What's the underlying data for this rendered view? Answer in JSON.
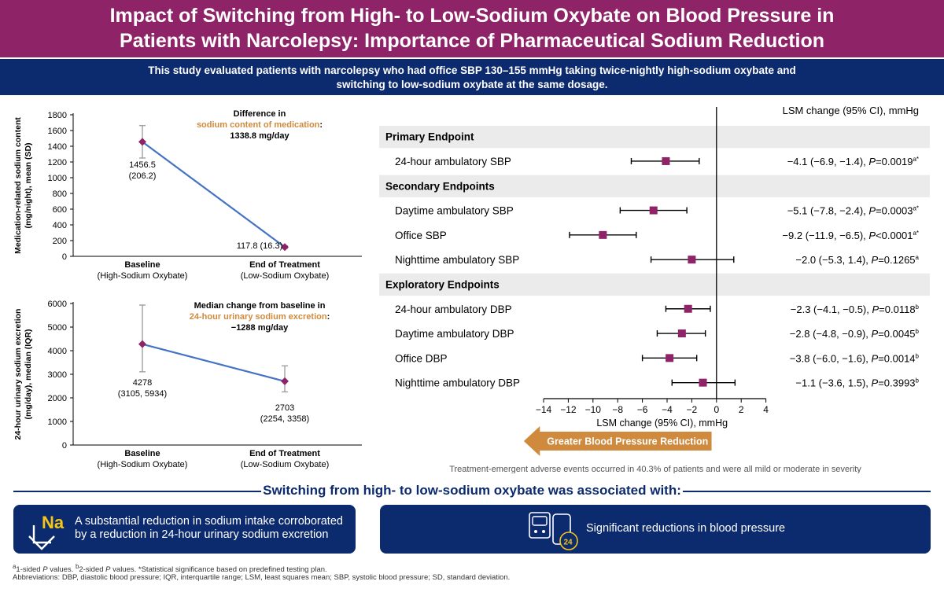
{
  "header": {
    "title_line1": "Impact of Switching from High- to Low-Sodium Oxybate on Blood Pressure in",
    "title_line2": "Patients with Narcolepsy: Importance of Pharmaceutical Sodium Reduction"
  },
  "intro": {
    "line1": "This study evaluated patients with narcolepsy who had office SBP 130–155 mmHg taking twice-nightly high-sodium oxybate and",
    "line2": "switching to low-sodium oxybate at the same dosage."
  },
  "colors": {
    "title_bar": "#8f2368",
    "navy": "#0c2a6e",
    "orange": "#cf8a3e",
    "marker": "#8f2368",
    "line": "#4472c4"
  },
  "chart_data": [
    {
      "type": "line",
      "ylabel_line1": "Medication-related sodium content",
      "ylabel_line2": "(mg/night), mean (SD)",
      "yticks": [
        "0",
        "200",
        "400",
        "600",
        "800",
        "1000",
        "1200",
        "1400",
        "1600",
        "1800"
      ],
      "ylim": [
        0,
        1800
      ],
      "categories": [
        {
          "label": "Baseline",
          "sublabel": "(High-Sodium Oxybate)"
        },
        {
          "label": "End of Treatment",
          "sublabel": "(Low-Sodium Oxybate)"
        }
      ],
      "values": [
        1456.5,
        117.8
      ],
      "error_low": [
        1250.3,
        101.5
      ],
      "error_high": [
        1662.7,
        134.1
      ],
      "point_labels": [
        [
          "1456.5",
          "(206.2)"
        ],
        [
          "117.8 (16.3)"
        ]
      ],
      "annotation": {
        "line1": "Difference in",
        "highlight": "sodium content of medication",
        "suffix": ":",
        "value": "1338.8 mg/day"
      }
    },
    {
      "type": "line",
      "ylabel_line1": "24-hour urinary sodium excretion",
      "ylabel_line2": "(mg/day), median (IQR)",
      "yticks": [
        "0",
        "1000",
        "2000",
        "3000",
        "4000",
        "5000",
        "6000"
      ],
      "ylim": [
        0,
        6000
      ],
      "categories": [
        {
          "label": "Baseline",
          "sublabel": "(High-Sodium Oxybate)"
        },
        {
          "label": "End of Treatment",
          "sublabel": "(Low-Sodium Oxybate)"
        }
      ],
      "values": [
        4278,
        2703
      ],
      "error_low": [
        3105,
        2254
      ],
      "error_high": [
        5934,
        3358
      ],
      "point_labels": [
        [
          "4278",
          "(3105, 5934)"
        ],
        [
          "2703",
          "(2254, 3358)"
        ]
      ],
      "annotation": {
        "line1": "Median change from baseline in",
        "highlight": "24-hour urinary sodium excretion",
        "suffix": ":",
        "value": "−1288 mg/day"
      }
    },
    {
      "type": "forest",
      "column_header": "LSM change (95% CI), mmHg",
      "xlabel": "LSM change (95% CI), mmHg",
      "xlim": [
        -14,
        4
      ],
      "xticks": [
        -14,
        -12,
        -10,
        -8,
        -6,
        -4,
        -2,
        0,
        2,
        4
      ],
      "xtick_labels": [
        "−14",
        "−12",
        "−10",
        "−8",
        "−6",
        "−4",
        "−2",
        "0",
        "2",
        "4"
      ],
      "arrow_label": "Greater Blood Pressure Reduction",
      "rows": [
        {
          "kind": "section",
          "label": "Primary Endpoint"
        },
        {
          "kind": "item",
          "label": "24-hour ambulatory SBP",
          "est": -4.1,
          "lo": -6.9,
          "hi": -1.4,
          "ci": "−4.1 (−6.9, −1.4), ",
          "p": "=0.0019",
          "sup": "a*"
        },
        {
          "kind": "section",
          "label": "Secondary Endpoints"
        },
        {
          "kind": "item",
          "label": "Daytime ambulatory SBP",
          "est": -5.1,
          "lo": -7.8,
          "hi": -2.4,
          "ci": "−5.1 (−7.8, −2.4), ",
          "p": "=0.0003",
          "sup": "a*"
        },
        {
          "kind": "item",
          "label": "Office SBP",
          "est": -9.2,
          "lo": -11.9,
          "hi": -6.5,
          "ci": "−9.2 (−11.9, −6.5), ",
          "p": "<0.0001",
          "sup": "a*"
        },
        {
          "kind": "item",
          "label": "Nighttime ambulatory SBP",
          "est": -2.0,
          "lo": -5.3,
          "hi": 1.4,
          "ci": "−2.0 (−5.3, 1.4), ",
          "p": "=0.1265",
          "sup": "a"
        },
        {
          "kind": "section",
          "label": "Exploratory Endpoints"
        },
        {
          "kind": "item",
          "label": "24-hour ambulatory DBP",
          "est": -2.3,
          "lo": -4.1,
          "hi": -0.5,
          "ci": "−2.3 (−4.1, −0.5), ",
          "p": "=0.0118",
          "sup": "b"
        },
        {
          "kind": "item",
          "label": "Daytime ambulatory DBP",
          "est": -2.8,
          "lo": -4.8,
          "hi": -0.9,
          "ci": "−2.8 (−4.8, −0.9), ",
          "p": "=0.0045",
          "sup": "b"
        },
        {
          "kind": "item",
          "label": "Office DBP",
          "est": -3.8,
          "lo": -6.0,
          "hi": -1.6,
          "ci": "−3.8 (−6.0, −1.6), ",
          "p": "=0.0014",
          "sup": "b"
        },
        {
          "kind": "item",
          "label": "Nighttime ambulatory DBP",
          "est": -1.1,
          "lo": -3.6,
          "hi": 1.5,
          "ci": "−1.1 (−3.6, 1.5), ",
          "p": "=0.3993",
          "sup": "b"
        }
      ],
      "p_letter": "P",
      "note": "Treatment-emergent adverse events occurred in 40.3% of patients and were all mild or moderate in severity"
    }
  ],
  "conclusion": {
    "title": "Switching from high- to low-sodium oxybate was associated with:",
    "box1_icon": "sodium-down-icon",
    "box1_icon_text": "Na",
    "box1_text": "A substantial reduction in sodium intake corroborated by a reduction in 24-hour urinary sodium excretion",
    "box2_icon": "blood-pressure-monitor-icon",
    "box2_icon_text": "24",
    "box2_text": "Significant reductions in blood pressure"
  },
  "footnotes": {
    "sup_a": "a",
    "line1_a": "1-sided ",
    "p1": "P",
    "line1_b": " values. ",
    "sup_b": "b",
    "line1_c": "2-sided ",
    "p2": "P",
    "line1_d": " values. *Statistical significance based on predefined testing plan.",
    "line2": "Abbreviations: DBP, diastolic blood pressure; IQR, interquartile range; LSM, least squares mean; SBP, systolic blood pressure; SD, standard deviation."
  }
}
